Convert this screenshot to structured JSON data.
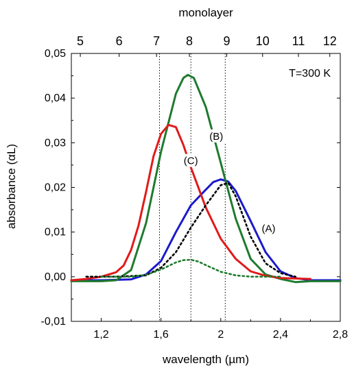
{
  "chart_data": {
    "type": "line",
    "title": "",
    "xlabel": "wavelength (µm)",
    "ylabel": "absorbance (αL)",
    "top_axis_label": "monolayer",
    "annotation": "T=300 K",
    "xlim": [
      1.0,
      2.8
    ],
    "ylim": [
      -0.01,
      0.05
    ],
    "grid": false,
    "x_ticks": [
      1.2,
      1.6,
      2.0,
      2.4,
      2.8
    ],
    "x_tick_labels": [
      "1,2",
      "1,6",
      "2",
      "2,4",
      "2,8"
    ],
    "y_ticks": [
      -0.01,
      0.0,
      0.01,
      0.02,
      0.03,
      0.04,
      0.05
    ],
    "y_tick_labels": [
      "-0,01",
      "0,00",
      "0,01",
      "0,02",
      "0,03",
      "0,04",
      "0,05"
    ],
    "top_ticks": [
      {
        "label": "5",
        "x": 1.06
      },
      {
        "label": "6",
        "x": 1.32
      },
      {
        "label": "7",
        "x": 1.57
      },
      {
        "label": "8",
        "x": 1.79
      },
      {
        "label": "9",
        "x": 2.04
      },
      {
        "label": "10",
        "x": 2.28
      },
      {
        "label": "11",
        "x": 2.52
      },
      {
        "label": "12",
        "x": 2.73
      }
    ],
    "vlines": [
      1.59,
      1.8,
      2.03
    ],
    "series": [
      {
        "name": "(A)",
        "color": "#1a1acc",
        "style": "solid",
        "x": [
          1.0,
          1.2,
          1.4,
          1.5,
          1.6,
          1.7,
          1.8,
          1.9,
          1.95,
          2.0,
          2.05,
          2.1,
          2.2,
          2.3,
          2.4,
          2.5,
          2.6,
          2.8
        ],
        "y": [
          -0.0008,
          -0.0008,
          -0.0006,
          0.0005,
          0.0035,
          0.01,
          0.016,
          0.0195,
          0.0212,
          0.0218,
          0.0213,
          0.0192,
          0.0125,
          0.0055,
          0.0012,
          -0.0003,
          -0.0008,
          -0.0008
        ]
      },
      {
        "name": "(B)",
        "color": "#1e7a2e",
        "style": "solid",
        "x": [
          1.0,
          1.2,
          1.3,
          1.4,
          1.5,
          1.6,
          1.7,
          1.75,
          1.78,
          1.82,
          1.9,
          2.0,
          2.1,
          2.2,
          2.3,
          2.4,
          2.5,
          2.6,
          2.8
        ],
        "y": [
          -0.001,
          -0.001,
          -0.0008,
          0.0015,
          0.012,
          0.028,
          0.041,
          0.0445,
          0.0452,
          0.0445,
          0.038,
          0.0255,
          0.013,
          0.004,
          0.0005,
          -0.0005,
          -0.0012,
          -0.001,
          -0.001
        ]
      },
      {
        "name": "(C)",
        "color": "#e01a1a",
        "style": "solid",
        "x": [
          1.0,
          1.1,
          1.2,
          1.3,
          1.35,
          1.4,
          1.45,
          1.5,
          1.55,
          1.6,
          1.65,
          1.7,
          1.75,
          1.8,
          1.9,
          2.0,
          2.1,
          2.2,
          2.3,
          2.4,
          2.6
        ],
        "y": [
          -0.0008,
          -0.0005,
          0.0,
          0.001,
          0.0025,
          0.006,
          0.0115,
          0.019,
          0.027,
          0.032,
          0.034,
          0.0335,
          0.0295,
          0.0245,
          0.0155,
          0.0085,
          0.004,
          0.0012,
          0.0002,
          -0.0003,
          -0.0005
        ]
      },
      {
        "name": "",
        "color": "#000000",
        "style": "dotted",
        "x": [
          1.1,
          1.3,
          1.5,
          1.6,
          1.7,
          1.8,
          1.9,
          2.0,
          2.05,
          2.1,
          2.2,
          2.3,
          2.4,
          2.5
        ],
        "y": [
          0.0,
          0.0,
          0.0003,
          0.002,
          0.0055,
          0.011,
          0.016,
          0.0205,
          0.021,
          0.018,
          0.009,
          0.003,
          0.0008,
          0.0
        ]
      },
      {
        "name": "",
        "color": "#1e7a2e",
        "style": "dotted",
        "x": [
          1.2,
          1.4,
          1.5,
          1.6,
          1.7,
          1.75,
          1.8,
          1.85,
          1.9,
          2.0,
          2.1,
          2.2,
          2.4
        ],
        "y": [
          0.0,
          0.0,
          0.0004,
          0.0016,
          0.0032,
          0.0037,
          0.0038,
          0.0034,
          0.0026,
          0.0011,
          0.0003,
          0.0,
          0.0
        ]
      }
    ],
    "labels": [
      {
        "text": "(A)",
        "x": 2.32,
        "y": 0.0103
      },
      {
        "text": "(B)",
        "x": 1.97,
        "y": 0.031
      },
      {
        "text": "(C)",
        "x": 1.8,
        "y": 0.0255
      }
    ]
  }
}
